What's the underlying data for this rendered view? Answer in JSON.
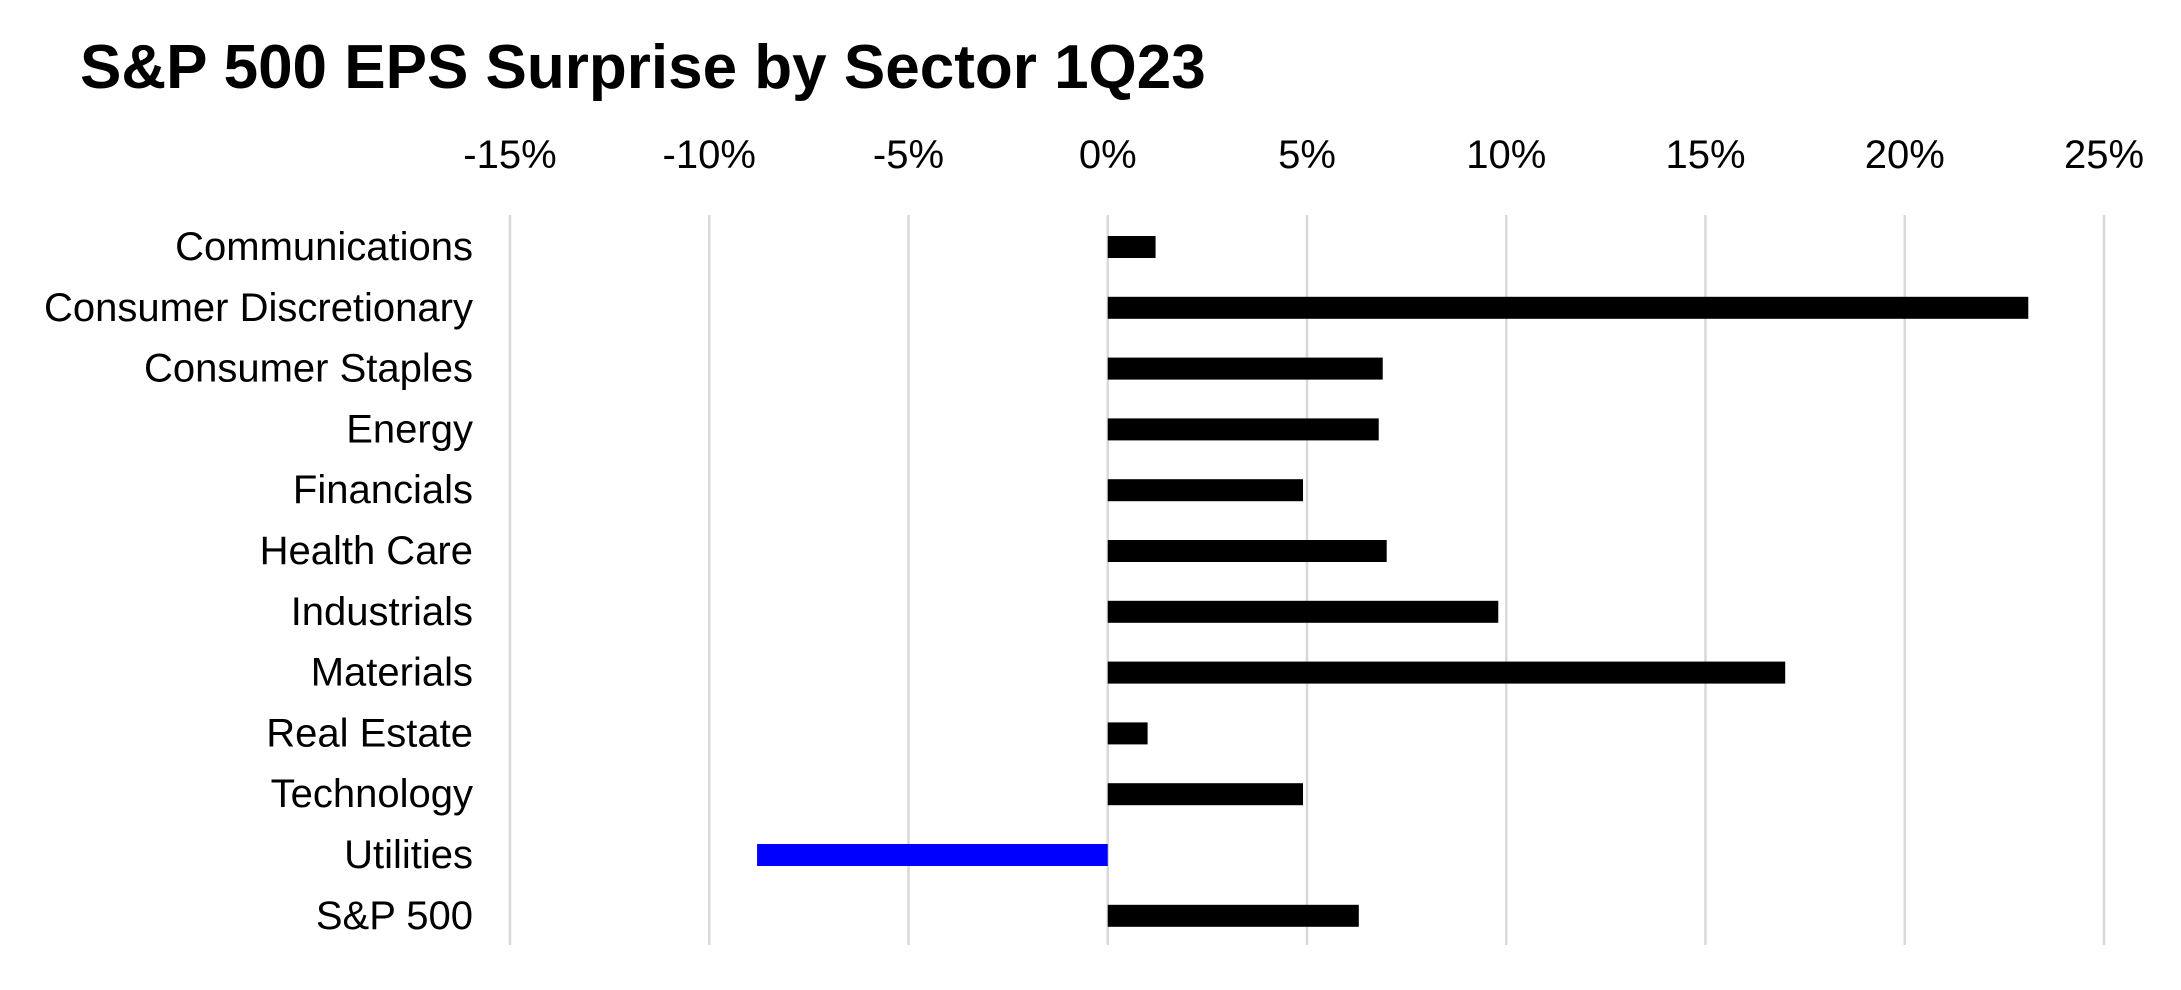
{
  "chart_data": {
    "type": "bar",
    "orientation": "horizontal",
    "title": "S&P 500 EPS Surprise by Sector 1Q23",
    "xlabel": "",
    "ylabel": "",
    "xlim": [
      -15,
      25
    ],
    "x_ticks": [
      -15,
      -10,
      -5,
      0,
      5,
      10,
      15,
      20,
      25
    ],
    "x_tick_labels": [
      "-15%",
      "-10%",
      "-5%",
      "0%",
      "5%",
      "10%",
      "15%",
      "20%",
      "25%"
    ],
    "x_axis_position": "top",
    "grid": "vertical",
    "legend": "none",
    "categories": [
      "Communications",
      "Consumer Discretionary",
      "Consumer Staples",
      "Energy",
      "Financials",
      "Health Care",
      "Industrials",
      "Materials",
      "Real Estate",
      "Technology",
      "Utilities",
      "S&P 500"
    ],
    "values": [
      1.2,
      23.1,
      6.9,
      6.8,
      4.9,
      7.0,
      9.8,
      17.0,
      1.0,
      4.9,
      -8.8,
      6.3
    ],
    "bar_colors": [
      "#000000",
      "#000000",
      "#000000",
      "#000000",
      "#000000",
      "#000000",
      "#000000",
      "#000000",
      "#000000",
      "#000000",
      "#0000ff",
      "#000000"
    ],
    "gridline_color": "#d9d9d9"
  }
}
